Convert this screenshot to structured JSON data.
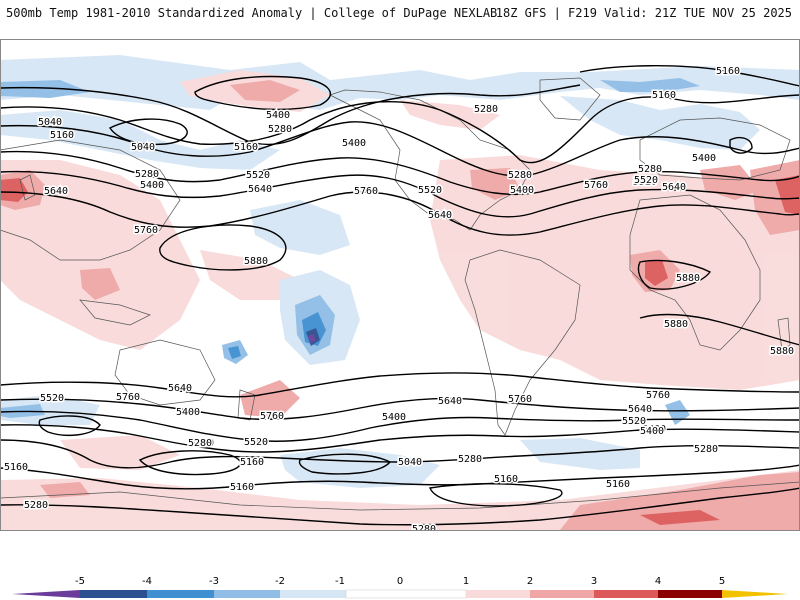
{
  "header": {
    "left": "500mb Temp 1981-2010 Standardized Anomaly | College of DuPage NEXLAB",
    "right": "18Z GFS | F219 Valid: 21Z TUE NOV 25 2025"
  },
  "colors": {
    "neg5": "#6a3d9a",
    "neg4": "#2c4f8f",
    "neg3": "#3f8fd1",
    "neg2": "#8fbde6",
    "neg1": "#d6e6f5",
    "zero": "#ffffff",
    "pos1": "#f9dada",
    "pos2": "#efa6a6",
    "pos3": "#dc5a5a",
    "pos4": "#c32a2a",
    "pos5": "#8b0000",
    "tip": "#f2c200",
    "land": "#555555",
    "contour": "#000000"
  },
  "colorbar": {
    "ticks": [
      "-5",
      "-4",
      "-3",
      "-2",
      "-1",
      "0",
      "1",
      "2",
      "3",
      "4",
      "5"
    ]
  },
  "contours": [
    {
      "id": "c5040a",
      "label": "5040"
    },
    {
      "id": "c5160a",
      "label": "5160"
    },
    {
      "id": "c5040b",
      "label": "5040"
    },
    {
      "id": "c5160b",
      "label": "5160"
    },
    {
      "id": "c5400a",
      "label": "5400"
    },
    {
      "id": "c5280a",
      "label": "5280"
    },
    {
      "id": "c5400b",
      "label": "5400"
    },
    {
      "id": "c5280b",
      "label": "5280"
    },
    {
      "id": "c5520a",
      "label": "5520"
    },
    {
      "id": "c5640a",
      "label": "5640"
    },
    {
      "id": "c5640b",
      "label": "5640"
    },
    {
      "id": "c5400c",
      "label": "5400"
    },
    {
      "id": "c5280c",
      "label": "5280"
    },
    {
      "id": "c5520b",
      "label": "5520"
    },
    {
      "id": "c5760a",
      "label": "5760"
    },
    {
      "id": "c5520c",
      "label": "5520"
    },
    {
      "id": "c5640c",
      "label": "5640"
    },
    {
      "id": "c5760b",
      "label": "5760"
    },
    {
      "id": "c5280d",
      "label": "5280"
    },
    {
      "id": "c5400d",
      "label": "5400"
    },
    {
      "id": "c5880a",
      "label": "5880"
    },
    {
      "id": "c5160c",
      "label": "5160"
    },
    {
      "id": "c5160d",
      "label": "5160"
    },
    {
      "id": "c5280e",
      "label": "5280"
    },
    {
      "id": "c5400e",
      "label": "5400"
    },
    {
      "id": "c5520d",
      "label": "5520"
    },
    {
      "id": "c5640d",
      "label": "5640"
    },
    {
      "id": "c5760c",
      "label": "5760"
    },
    {
      "id": "c5880b",
      "label": "5880"
    },
    {
      "id": "c5880c",
      "label": "5880"
    },
    {
      "id": "c5880d",
      "label": "5880"
    },
    {
      "id": "c5520e",
      "label": "5520"
    },
    {
      "id": "c5400f",
      "label": "5400"
    },
    {
      "id": "c5640e",
      "label": "5640"
    },
    {
      "id": "c5760d",
      "label": "5760"
    },
    {
      "id": "c5640f",
      "label": "5640"
    },
    {
      "id": "c5760e",
      "label": "5760"
    },
    {
      "id": "c5400g",
      "label": "5400"
    },
    {
      "id": "c5280f",
      "label": "5280"
    },
    {
      "id": "c5520f",
      "label": "5520"
    },
    {
      "id": "c5760f",
      "label": "5760"
    },
    {
      "id": "c5400h",
      "label": "5400"
    },
    {
      "id": "c5280g",
      "label": "5280"
    },
    {
      "id": "c5160e",
      "label": "5160"
    },
    {
      "id": "c5040c",
      "label": "5040"
    },
    {
      "id": "c5280h",
      "label": "5280"
    },
    {
      "id": "c5160f",
      "label": "5160"
    },
    {
      "id": "c5640g",
      "label": "5640"
    },
    {
      "id": "c5520g",
      "label": "5520"
    },
    {
      "id": "c5400i",
      "label": "5400"
    },
    {
      "id": "c5760g",
      "label": "5760"
    },
    {
      "id": "c5280i",
      "label": "5280"
    },
    {
      "id": "c5160g",
      "label": "5160"
    },
    {
      "id": "c5160h",
      "label": "5160"
    },
    {
      "id": "c5280j",
      "label": "5280"
    },
    {
      "id": "c5160i",
      "label": "5160"
    },
    {
      "id": "c5280k",
      "label": "5280"
    }
  ]
}
